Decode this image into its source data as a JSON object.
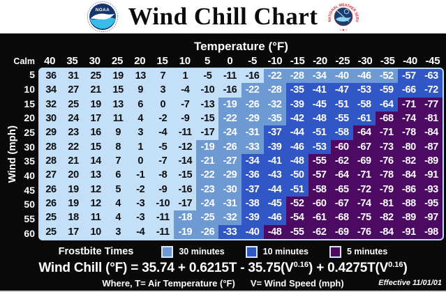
{
  "header": {
    "title": "Wind Chill Chart",
    "noaa_logo_text": "NOAA",
    "nws_logo_text": "NATIONAL WEATHER SERVICE",
    "nws_logo_stars": "• ★ •"
  },
  "table": {
    "temperature_axis_label": "Temperature (°F)",
    "wind_axis_label": "Wind (mph)",
    "calm_label": "Calm"
  },
  "legend": {
    "title": "Frostbite Times",
    "items": [
      {
        "label": "30 minutes",
        "color": "#6E9AD4"
      },
      {
        "label": "10 minutes",
        "color": "#3156C6"
      },
      {
        "label": "5 minutes",
        "color": "#4D0A63"
      }
    ]
  },
  "formula": {
    "prefix": "Wind Chill (°F) = 35.74 + 0.6215T - 35.75(V",
    "sup1": "0.16",
    "mid": ") + 0.4275T(V",
    "sup2": "0.16",
    "suffix": ")"
  },
  "footer": {
    "where_t": "Where, T= Air Temperature (°F)",
    "where_v": "V= Wind Speed (mph)",
    "effective": "Effective 11/01/01"
  },
  "colors": {
    "background": "#0A0A0A",
    "no_frostbite": "#C4E0F8",
    "frostbite_30min": "#6E9AD4",
    "frostbite_10min": "#3156C6",
    "frostbite_5min": "#4D0A63"
  },
  "chart_data": {
    "type": "heatmap",
    "title": "Wind Chill Chart",
    "xlabel": "Temperature (°F)",
    "ylabel": "Wind (mph)",
    "x_categories": [
      "40",
      "35",
      "30",
      "25",
      "20",
      "15",
      "10",
      "5",
      "0",
      "-5",
      "-10",
      "-15",
      "-20",
      "-25",
      "-30",
      "-35",
      "-40",
      "-45"
    ],
    "y_categories": [
      "5",
      "10",
      "15",
      "20",
      "25",
      "30",
      "35",
      "40",
      "45",
      "50",
      "55",
      "60"
    ],
    "values": [
      [
        36,
        31,
        25,
        19,
        13,
        7,
        1,
        -5,
        -11,
        -16,
        -22,
        -28,
        -34,
        -40,
        -46,
        -52,
        -57,
        -63
      ],
      [
        34,
        27,
        21,
        15,
        9,
        3,
        -4,
        -10,
        -16,
        -22,
        -28,
        -35,
        -41,
        -47,
        -53,
        -59,
        -66,
        -72
      ],
      [
        32,
        25,
        19,
        13,
        6,
        0,
        -7,
        -13,
        -19,
        -26,
        -32,
        -39,
        -45,
        -51,
        -58,
        -64,
        -71,
        -77
      ],
      [
        30,
        24,
        17,
        11,
        4,
        -2,
        -9,
        -15,
        -22,
        -29,
        -35,
        -42,
        -48,
        -55,
        -61,
        -68,
        -74,
        -81
      ],
      [
        29,
        23,
        16,
        9,
        3,
        -4,
        -11,
        -17,
        -24,
        -31,
        -37,
        -44,
        -51,
        -58,
        -64,
        -71,
        -78,
        -84
      ],
      [
        28,
        22,
        15,
        8,
        1,
        -5,
        -12,
        -19,
        -26,
        -33,
        -39,
        -46,
        -53,
        -60,
        -67,
        -73,
        -80,
        -87
      ],
      [
        28,
        21,
        14,
        7,
        0,
        -7,
        -14,
        -21,
        -27,
        -34,
        -41,
        -48,
        -55,
        -62,
        -69,
        -76,
        -82,
        -89
      ],
      [
        27,
        20,
        13,
        6,
        -1,
        -8,
        -15,
        -22,
        -29,
        -36,
        -43,
        -50,
        -57,
        -64,
        -71,
        -78,
        -84,
        -91
      ],
      [
        26,
        19,
        12,
        5,
        -2,
        -9,
        -16,
        -23,
        -30,
        -37,
        -44,
        -51,
        -58,
        -65,
        -72,
        -79,
        -86,
        -93
      ],
      [
        26,
        19,
        12,
        4,
        -3,
        -10,
        -17,
        -24,
        -31,
        -38,
        -45,
        -52,
        -60,
        -67,
        -74,
        -81,
        -88,
        -95
      ],
      [
        25,
        18,
        11,
        4,
        -3,
        -11,
        -18,
        -25,
        -32,
        -39,
        -46,
        -54,
        -61,
        -68,
        -75,
        -82,
        -89,
        -97
      ],
      [
        25,
        17,
        10,
        3,
        -4,
        -11,
        -19,
        -26,
        -33,
        -40,
        -48,
        -55,
        -62,
        -69,
        -76,
        -84,
        -91,
        -98
      ]
    ],
    "frostbite_categories": [
      [
        "l",
        "l",
        "l",
        "l",
        "l",
        "l",
        "l",
        "l",
        "l",
        "l",
        "m",
        "m",
        "m",
        "m",
        "m",
        "m",
        "d",
        "d"
      ],
      [
        "l",
        "l",
        "l",
        "l",
        "l",
        "l",
        "l",
        "l",
        "l",
        "m",
        "m",
        "d",
        "d",
        "d",
        "d",
        "d",
        "d",
        "d"
      ],
      [
        "l",
        "l",
        "l",
        "l",
        "l",
        "l",
        "l",
        "l",
        "m",
        "m",
        "m",
        "d",
        "d",
        "d",
        "d",
        "d",
        "p",
        "p"
      ],
      [
        "l",
        "l",
        "l",
        "l",
        "l",
        "l",
        "l",
        "l",
        "m",
        "m",
        "m",
        "d",
        "d",
        "d",
        "d",
        "p",
        "p",
        "p"
      ],
      [
        "l",
        "l",
        "l",
        "l",
        "l",
        "l",
        "l",
        "l",
        "m",
        "m",
        "d",
        "d",
        "d",
        "d",
        "p",
        "p",
        "p",
        "p"
      ],
      [
        "l",
        "l",
        "l",
        "l",
        "l",
        "l",
        "l",
        "m",
        "m",
        "m",
        "d",
        "d",
        "d",
        "p",
        "p",
        "p",
        "p",
        "p"
      ],
      [
        "l",
        "l",
        "l",
        "l",
        "l",
        "l",
        "l",
        "m",
        "m",
        "d",
        "d",
        "d",
        "p",
        "p",
        "p",
        "p",
        "p",
        "p"
      ],
      [
        "l",
        "l",
        "l",
        "l",
        "l",
        "l",
        "l",
        "m",
        "m",
        "d",
        "d",
        "d",
        "p",
        "p",
        "p",
        "p",
        "p",
        "p"
      ],
      [
        "l",
        "l",
        "l",
        "l",
        "l",
        "l",
        "l",
        "m",
        "m",
        "d",
        "d",
        "d",
        "p",
        "p",
        "p",
        "p",
        "p",
        "p"
      ],
      [
        "l",
        "l",
        "l",
        "l",
        "l",
        "l",
        "l",
        "m",
        "m",
        "d",
        "d",
        "p",
        "p",
        "p",
        "p",
        "p",
        "p",
        "p"
      ],
      [
        "l",
        "l",
        "l",
        "l",
        "l",
        "l",
        "m",
        "m",
        "m",
        "d",
        "d",
        "p",
        "p",
        "p",
        "p",
        "p",
        "p",
        "p"
      ],
      [
        "l",
        "l",
        "l",
        "l",
        "l",
        "l",
        "m",
        "m",
        "d",
        "d",
        "p",
        "p",
        "p",
        "p",
        "p",
        "p",
        "p",
        "p"
      ]
    ],
    "category_legend": {
      "l": "no frostbite time shown",
      "m": "frostbite in 30 minutes",
      "d": "frostbite in 10 minutes",
      "p": "frostbite in 5 minutes"
    },
    "legend_position": "bottom",
    "grid": false
  }
}
